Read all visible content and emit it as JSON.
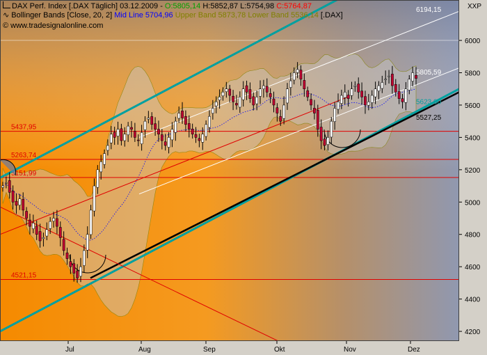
{
  "header": {
    "line1": {
      "prefix": "DAX Perf. Index [.DAX  Täglich] 03.12.2009 -",
      "open": "O:5805,14",
      "high": "H:5852,87",
      "low": "L:5754,98",
      "close": "C:5764,87"
    },
    "line2": {
      "prefix": "Bollinger Bands [Close, 20, 2]",
      "mid": "Mid Line 5704,96",
      "upper": "Upper Band 5873,78",
      "lower": "Lower Band 5536,14",
      "suffix": "[.DAX]"
    },
    "line3": "© www.tradesignalonline.com",
    "xxp": "XXP"
  },
  "colors": {
    "open": "#00a000",
    "close": "#ff0000",
    "mid": "#0000ff",
    "upper": "#808000",
    "lower": "#808000",
    "horizontal_lines": "#e00000",
    "channel": "#00a0a0",
    "trend": "#000000",
    "up_candle": "#ffffff",
    "down_candle": "#c00030"
  },
  "chart_data": {
    "type": "candlestick",
    "title": "DAX Perf. Index [.DAX Täglich]",
    "ylim": [
      4140,
      6250
    ],
    "y_ticks": [
      4200,
      4400,
      4600,
      4800,
      5000,
      5200,
      5400,
      5600,
      5800,
      6000
    ],
    "x_labels": [
      "Jul",
      "Aug",
      "Sep",
      "Okt",
      "Nov",
      "Dez"
    ],
    "horizontal_levels": [
      {
        "value": 5437.95,
        "label": "5437,95"
      },
      {
        "value": 5263.74,
        "label": "5263,74"
      },
      {
        "value": 5151.99,
        "label": "5151,99"
      },
      {
        "value": 4521.15,
        "label": "4521,15"
      }
    ],
    "price_labels": [
      {
        "value": 6194.15,
        "label": "6194,15"
      },
      {
        "value": 5805.59,
        "label": "5805,59"
      },
      {
        "value": 5623.0,
        "label": "5623,00"
      },
      {
        "value": 5527.25,
        "label": "5527,25"
      }
    ],
    "close_series": [
      5100,
      5120,
      5060,
      5000,
      4980,
      5020,
      4950,
      4900,
      4850,
      4870,
      4800,
      4760,
      4780,
      4830,
      4880,
      4900,
      4850,
      4780,
      4700,
      4650,
      4600,
      4560,
      4530,
      4600,
      4700,
      4800,
      4950,
      5100,
      5200,
      5250,
      5300,
      5350,
      5420,
      5400,
      5450,
      5380,
      5420,
      5470,
      5450,
      5400,
      5380,
      5430,
      5500,
      5520,
      5480,
      5450,
      5420,
      5380,
      5350,
      5400,
      5450,
      5500,
      5550,
      5520,
      5480,
      5450,
      5420,
      5400,
      5380,
      5420,
      5480,
      5530,
      5580,
      5620,
      5650,
      5680,
      5700,
      5660,
      5620,
      5600,
      5650,
      5700,
      5680,
      5640,
      5600,
      5650,
      5700,
      5720,
      5680,
      5650,
      5600,
      5550,
      5500,
      5600,
      5700,
      5750,
      5800,
      5820,
      5760,
      5700,
      5650,
      5600,
      5550,
      5450,
      5380,
      5350,
      5400,
      5500,
      5580,
      5620,
      5660,
      5680,
      5640,
      5700,
      5720,
      5680,
      5650,
      5600,
      5620,
      5660,
      5700,
      5720,
      5740,
      5760,
      5780,
      5720,
      5680,
      5640,
      5620,
      5700,
      5760,
      5800,
      5765
    ],
    "bollinger": {
      "period": 20,
      "stdev": 2,
      "mid": 5704.96,
      "upper": 5873.78,
      "lower": 5536.14
    }
  }
}
